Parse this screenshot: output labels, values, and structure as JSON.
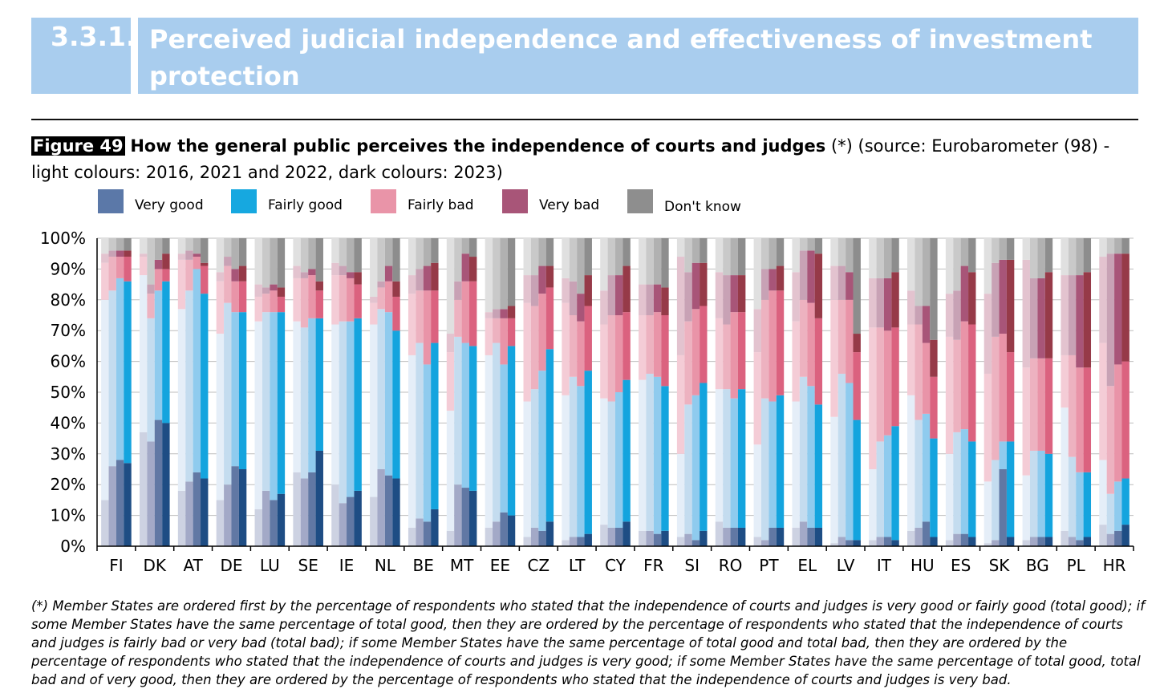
{
  "header": {
    "section_number": "3.3.1.",
    "section_title": "Perceived judicial independence and effectiveness of investment protection"
  },
  "figure": {
    "tag": "Figure 49",
    "title": "How the general public perceives the independence of courts and judges",
    "caption_rest": " (*) (source: Eurobarometer (98) - light colours: 2016, 2021 and 2022, dark colours: 2023)"
  },
  "legend": [
    {
      "label": "Very good",
      "color": "#5b78a8"
    },
    {
      "label": "Fairly good",
      "color": "#16a8e0"
    },
    {
      "label": "Fairly bad",
      "color": "#e994a8"
    },
    {
      "label": "Very bad",
      "color": "#a85578"
    },
    {
      "label": "Don't know",
      "color": "#8e8e8e"
    }
  ],
  "footnote": "(*) Member States are ordered first by the percentage of respondents who stated that the independence of courts and judges is very good or fairly good (total good); if some Member States have the same percentage of total good, then they are ordered by the percentage of respondents who stated that the independence of courts and judges is fairly bad or very bad (total bad); if some Member States have the same percentage of total good and total bad, then they are ordered by the percentage of respondents who stated that the independence of courts and judges is very good; if some Member States have the same percentage of total good, total bad and of very good, then they are ordered by the percentage of respondents who stated that the independence of courts and judges is very bad.",
  "chart_data": {
    "type": "bar",
    "stacked": true,
    "ylim": [
      0,
      100
    ],
    "yticks": [
      "0%",
      "10%",
      "20%",
      "30%",
      "40%",
      "50%",
      "60%",
      "70%",
      "80%",
      "90%",
      "100%"
    ],
    "grid": true,
    "legend_position": "top",
    "years": [
      "2016",
      "2021",
      "2022",
      "2023"
    ],
    "segments": [
      "Very good",
      "Fairly good",
      "Fairly bad",
      "Very bad",
      "Don't know"
    ],
    "shades": {
      "Very good": [
        "#cdd2e2",
        "#a3a9c7",
        "#6178a4",
        "#1e4d84"
      ],
      "Fairly good": [
        "#e5eef8",
        "#c4dcef",
        "#8fcbee",
        "#14a4de"
      ],
      "Fairly bad": [
        "#f4ccd6",
        "#edb2c0",
        "#e994a8",
        "#db627f"
      ],
      "Very bad": [
        "#e3c3cf",
        "#c8a2b5",
        "#a85578",
        "#963a48"
      ],
      "Don't know": [
        "#e0e0e0",
        "#c9c9c9",
        "#b1b1b1",
        "#8d8d8d"
      ]
    },
    "countries": [
      {
        "code": "FI",
        "values": [
          [
            15,
            65,
            12,
            3,
            5
          ],
          [
            26,
            57,
            11,
            2,
            4
          ],
          [
            28,
            59,
            7,
            2,
            4
          ],
          [
            27,
            59,
            8,
            2,
            4
          ]
        ]
      },
      {
        "code": "DK",
        "values": [
          [
            37,
            51,
            6,
            1,
            5
          ],
          [
            34,
            40,
            8,
            3,
            15
          ],
          [
            41,
            42,
            7,
            3,
            7
          ],
          [
            40,
            46,
            4,
            5,
            5
          ]
        ]
      },
      {
        "code": "AT",
        "values": [
          [
            18,
            59,
            16,
            2,
            5
          ],
          [
            21,
            62,
            10,
            3,
            4
          ],
          [
            24,
            66,
            4,
            1,
            5
          ],
          [
            22,
            60,
            9,
            1,
            8
          ]
        ]
      },
      {
        "code": "DE",
        "values": [
          [
            15,
            54,
            17,
            3,
            11
          ],
          [
            20,
            59,
            12,
            3,
            6
          ],
          [
            26,
            50,
            10,
            4,
            10
          ],
          [
            25,
            51,
            10,
            5,
            9
          ]
        ]
      },
      {
        "code": "LU",
        "values": [
          [
            12,
            61,
            8,
            4,
            15
          ],
          [
            18,
            58,
            6,
            2,
            16
          ],
          [
            15,
            61,
            7,
            2,
            15
          ],
          [
            17,
            59,
            5,
            3,
            16
          ]
        ]
      },
      {
        "code": "SE",
        "values": [
          [
            24,
            49,
            14,
            4,
            9
          ],
          [
            22,
            49,
            16,
            2,
            11
          ],
          [
            24,
            50,
            14,
            2,
            10
          ],
          [
            31,
            43,
            9,
            3,
            14
          ]
        ]
      },
      {
        "code": "IE",
        "values": [
          [
            20,
            52,
            16,
            4,
            8
          ],
          [
            14,
            59,
            15,
            3,
            9
          ],
          [
            16,
            57,
            14,
            2,
            11
          ],
          [
            18,
            56,
            11,
            4,
            11
          ]
        ]
      },
      {
        "code": "NL",
        "values": [
          [
            16,
            56,
            7,
            2,
            19
          ],
          [
            25,
            52,
            7,
            2,
            14
          ],
          [
            23,
            53,
            10,
            5,
            9
          ],
          [
            22,
            48,
            11,
            5,
            14
          ]
        ]
      },
      {
        "code": "BE",
        "values": [
          [
            6,
            56,
            20,
            6,
            12
          ],
          [
            9,
            57,
            17,
            7,
            10
          ],
          [
            8,
            51,
            24,
            8,
            9
          ],
          [
            12,
            54,
            17,
            9,
            8
          ]
        ]
      },
      {
        "code": "MT",
        "values": [
          [
            5,
            39,
            19,
            6,
            31
          ],
          [
            20,
            48,
            12,
            6,
            14
          ],
          [
            19,
            47,
            20,
            9,
            5
          ],
          [
            18,
            47,
            21,
            8,
            6
          ]
        ]
      },
      {
        "code": "EE",
        "values": [
          [
            6,
            56,
            12,
            2,
            24
          ],
          [
            8,
            58,
            8,
            3,
            23
          ],
          [
            11,
            48,
            15,
            3,
            23
          ],
          [
            10,
            55,
            9,
            4,
            22
          ]
        ]
      },
      {
        "code": "CZ",
        "values": [
          [
            3,
            44,
            32,
            9,
            12
          ],
          [
            6,
            45,
            27,
            10,
            12
          ],
          [
            5,
            52,
            25,
            9,
            9
          ],
          [
            8,
            56,
            20,
            7,
            9
          ]
        ]
      },
      {
        "code": "LT",
        "values": [
          [
            2,
            47,
            30,
            8,
            13
          ],
          [
            3,
            52,
            20,
            11,
            14
          ],
          [
            3,
            49,
            21,
            9,
            18
          ],
          [
            4,
            53,
            21,
            10,
            12
          ]
        ]
      },
      {
        "code": "CY",
        "values": [
          [
            7,
            41,
            24,
            11,
            17
          ],
          [
            6,
            41,
            28,
            13,
            12
          ],
          [
            6,
            44,
            25,
            13,
            12
          ],
          [
            8,
            46,
            22,
            15,
            9
          ]
        ]
      },
      {
        "code": "FR",
        "values": [
          [
            5,
            49,
            21,
            10,
            15
          ],
          [
            5,
            51,
            19,
            10,
            15
          ],
          [
            4,
            51,
            21,
            9,
            15
          ],
          [
            5,
            47,
            23,
            9,
            16
          ]
        ]
      },
      {
        "code": "SI",
        "values": [
          [
            3,
            27,
            32,
            32,
            6
          ],
          [
            4,
            42,
            27,
            16,
            11
          ],
          [
            2,
            47,
            28,
            15,
            8
          ],
          [
            5,
            48,
            25,
            14,
            8
          ]
        ]
      },
      {
        "code": "RO",
        "values": [
          [
            8,
            43,
            23,
            15,
            11
          ],
          [
            6,
            45,
            21,
            16,
            12
          ],
          [
            6,
            42,
            28,
            12,
            12
          ],
          [
            6,
            45,
            25,
            12,
            12
          ]
        ]
      },
      {
        "code": "PT",
        "values": [
          [
            3,
            30,
            30,
            14,
            23
          ],
          [
            2,
            46,
            32,
            10,
            10
          ],
          [
            6,
            41,
            36,
            7,
            10
          ],
          [
            6,
            43,
            34,
            8,
            9
          ]
        ]
      },
      {
        "code": "EL",
        "values": [
          [
            6,
            41,
            26,
            16,
            11
          ],
          [
            8,
            47,
            25,
            16,
            4
          ],
          [
            6,
            46,
            27,
            17,
            4
          ],
          [
            6,
            40,
            28,
            21,
            5
          ]
        ]
      },
      {
        "code": "LV",
        "values": [
          [
            1,
            41,
            38,
            11,
            9
          ],
          [
            3,
            53,
            24,
            11,
            9
          ],
          [
            2,
            51,
            27,
            9,
            11
          ],
          [
            2,
            39,
            22,
            6,
            31
          ]
        ]
      },
      {
        "code": "IT",
        "values": [
          [
            2,
            23,
            46,
            16,
            13
          ],
          [
            3,
            31,
            37,
            16,
            13
          ],
          [
            3,
            33,
            34,
            17,
            13
          ],
          [
            2,
            37,
            32,
            18,
            11
          ]
        ]
      },
      {
        "code": "HU",
        "values": [
          [
            5,
            44,
            23,
            11,
            17
          ],
          [
            6,
            35,
            31,
            6,
            22
          ],
          [
            8,
            35,
            23,
            12,
            22
          ],
          [
            3,
            32,
            20,
            12,
            33
          ]
        ]
      },
      {
        "code": "ES",
        "values": [
          [
            2,
            28,
            38,
            14,
            18
          ],
          [
            4,
            33,
            30,
            16,
            17
          ],
          [
            4,
            34,
            35,
            18,
            9
          ],
          [
            3,
            31,
            38,
            17,
            11
          ]
        ]
      },
      {
        "code": "SK",
        "values": [
          [
            1,
            20,
            35,
            26,
            18
          ],
          [
            2,
            26,
            40,
            24,
            8
          ],
          [
            25,
            9,
            35,
            24,
            7
          ],
          [
            3,
            31,
            29,
            30,
            7
          ]
        ]
      },
      {
        "code": "BG",
        "values": [
          [
            2,
            21,
            35,
            35,
            7
          ],
          [
            3,
            28,
            30,
            26,
            13
          ],
          [
            3,
            28,
            30,
            26,
            13
          ],
          [
            3,
            27,
            31,
            28,
            11
          ]
        ]
      },
      {
        "code": "PL",
        "values": [
          [
            5,
            40,
            17,
            26,
            12
          ],
          [
            3,
            26,
            33,
            26,
            12
          ],
          [
            2,
            22,
            34,
            30,
            12
          ],
          [
            3,
            21,
            34,
            31,
            11
          ]
        ]
      },
      {
        "code": "HR",
        "values": [
          [
            7,
            21,
            38,
            28,
            6
          ],
          [
            4,
            13,
            35,
            43,
            5
          ],
          [
            5,
            16,
            38,
            36,
            5
          ],
          [
            7,
            15,
            38,
            35,
            5
          ]
        ]
      }
    ]
  }
}
